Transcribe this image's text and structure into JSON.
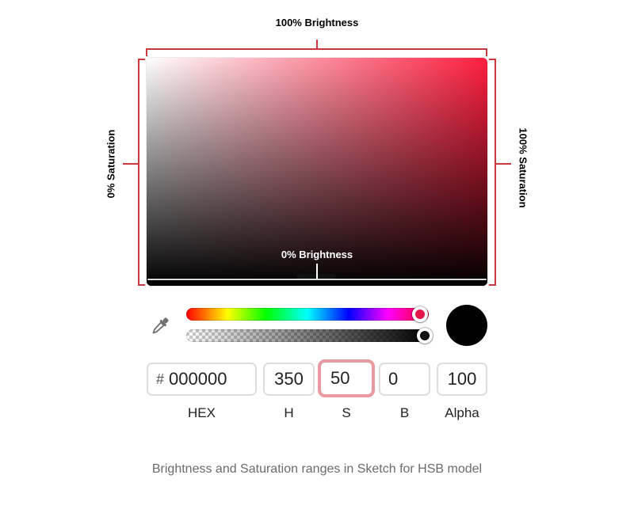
{
  "annotations": {
    "top": "100% Brightness",
    "bottom": "0% Brightness",
    "left": "0% Saturation",
    "right": "100% Saturation",
    "bracket_color": "#c8383c"
  },
  "picker": {
    "gradient_hue_color": "#ff1f40",
    "preview_color": "#000000",
    "hue_knob_color": "#e5174a",
    "alpha_knob_color": "#111111"
  },
  "inputs": {
    "hex_prefix": "#",
    "hex_value": "000000",
    "h_value": "350",
    "s_value": "50",
    "b_value": "0",
    "alpha_value": "100"
  },
  "labels": {
    "hex": "HEX",
    "h": "H",
    "s": "S",
    "b": "B",
    "alpha": "Alpha"
  },
  "caption": "Brightness and Saturation ranges in Sketch for HSB model",
  "icons": {
    "eyedropper": "eyedropper-icon"
  }
}
